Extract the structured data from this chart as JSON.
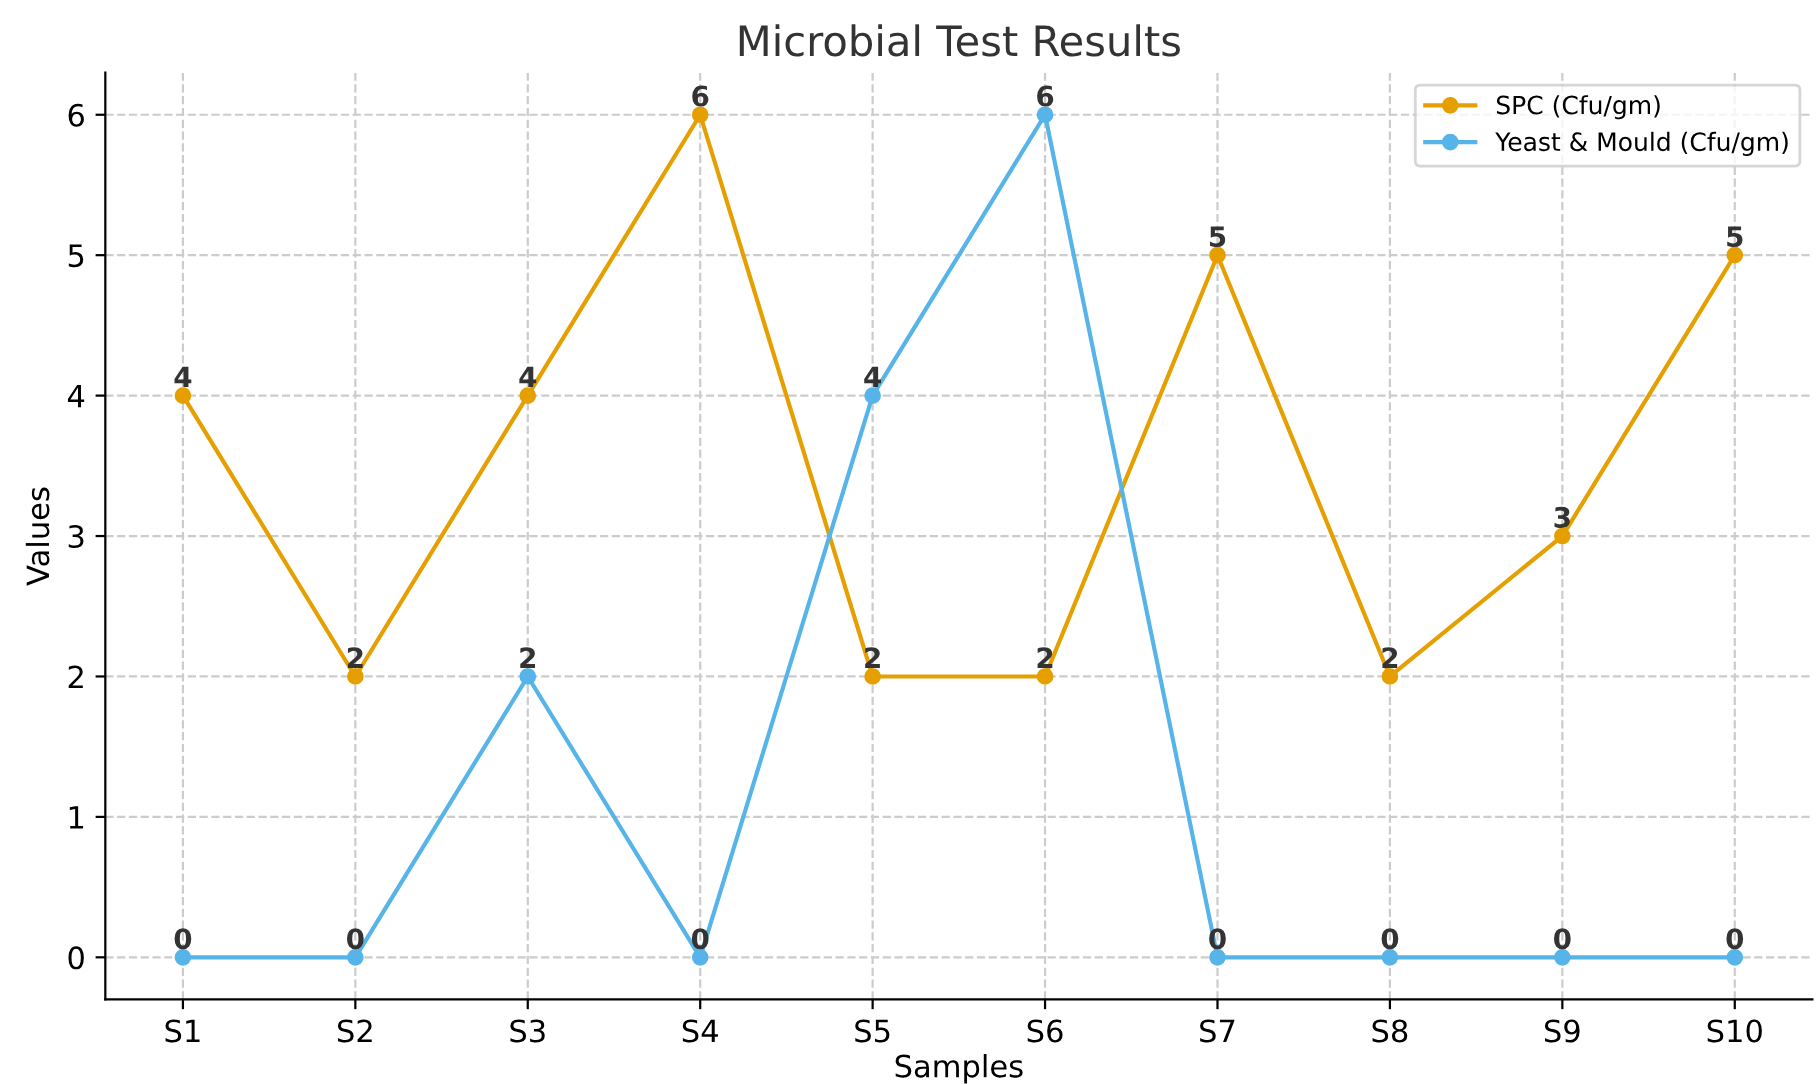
{
  "chart_data": {
    "type": "line",
    "title": "Microbial Test Results",
    "xlabel": "Samples",
    "ylabel": "Values",
    "categories": [
      "S1",
      "S2",
      "S3",
      "S4",
      "S5",
      "S6",
      "S7",
      "S8",
      "S9",
      "S10"
    ],
    "series": [
      {
        "name": "SPC (Cfu/gm)",
        "color": "#e69f00",
        "values": [
          4,
          2,
          4,
          6,
          2,
          2,
          5,
          2,
          3,
          5
        ]
      },
      {
        "name": "Yeast & Mould (Cfu/gm)",
        "color": "#56b4e9",
        "values": [
          0,
          0,
          2,
          0,
          4,
          6,
          0,
          0,
          0,
          0
        ]
      }
    ],
    "ylim": [
      -0.3,
      6.3
    ],
    "yticks": [
      0,
      1,
      2,
      3,
      4,
      5,
      6
    ],
    "grid": true,
    "legend": "top right",
    "marker": "circle",
    "line_style": "solid",
    "data_labels": true
  }
}
